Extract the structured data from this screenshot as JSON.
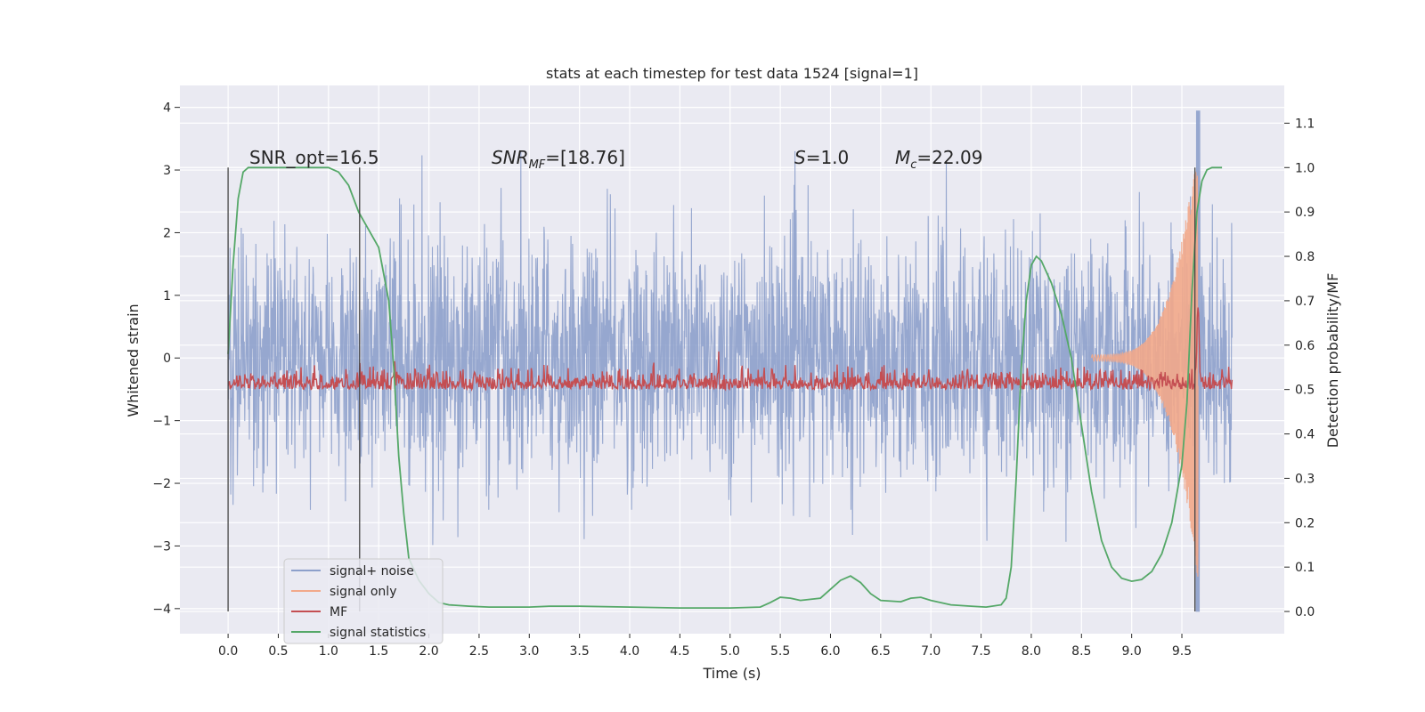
{
  "chart_data": {
    "type": "line",
    "title": "stats at each timestep for test data 1524 [signal=1]",
    "xlabel": "Time (s)",
    "ylabel": "Whitened strain",
    "y2label": "Detection probability/MF",
    "xlim": [
      -0.48,
      10.52
    ],
    "ylim": [
      -4.4,
      4.35
    ],
    "y2lim": [
      -0.05,
      1.185
    ],
    "xticks": [
      "0.0",
      "0.5",
      "1.0",
      "1.5",
      "2.0",
      "2.5",
      "3.0",
      "3.5",
      "4.0",
      "4.5",
      "5.0",
      "5.5",
      "6.0",
      "6.5",
      "7.0",
      "7.5",
      "8.0",
      "8.5",
      "9.0",
      "9.5"
    ],
    "yticks": [
      "4",
      "3",
      "2",
      "1",
      "0",
      "−1",
      "−2",
      "−3",
      "−4"
    ],
    "y2ticks": [
      "1.1",
      "1.0",
      "0.9",
      "0.8",
      "0.7",
      "0.6",
      "0.5",
      "0.4",
      "0.3",
      "0.2",
      "0.1",
      "0.0"
    ],
    "annotations": {
      "snr_opt": "SNR_opt=16.5",
      "snr_mf_sym": "SNR",
      "snr_mf_sub": "MF",
      "snr_mf_val": "=[18.76]",
      "s_sym": "S",
      "s_val": "=1.0",
      "mc_sym": "M",
      "mc_sub": "c",
      "mc_val": "=22.09"
    },
    "vlines_x": [
      0.0,
      1.31,
      9.63
    ],
    "legend": {
      "position": "lower-left",
      "entries": [
        "signal+ noise",
        "signal only",
        "MF",
        "signal statistics"
      ]
    },
    "series": [
      {
        "name": "signal+ noise",
        "axis": "left",
        "color": "#8da0cb",
        "description_envelope": {
          "typical_amplitude": 2.0,
          "peak_max": 3.95,
          "peak_min": -4.05,
          "x_range": [
            0.0,
            10.0
          ]
        }
      },
      {
        "name": "signal only",
        "axis": "left",
        "color": "#f2a98a",
        "chirp": {
          "start": 8.6,
          "end": 9.66,
          "max_amplitude": 3.5
        }
      },
      {
        "name": "MF",
        "axis": "right",
        "color": "#c44e52",
        "baseline": 0.5,
        "noise": 0.02,
        "peak_x": 9.66,
        "peak_value": 0.67
      },
      {
        "name": "signal statistics",
        "axis": "right",
        "color": "#55a868",
        "x": [
          0.0,
          0.05,
          0.1,
          0.15,
          0.2,
          0.3,
          0.5,
          0.8,
          1.0,
          1.1,
          1.2,
          1.3,
          1.4,
          1.5,
          1.6,
          1.65,
          1.7,
          1.75,
          1.8,
          1.9,
          2.0,
          2.1,
          2.2,
          2.4,
          2.6,
          2.8,
          3.0,
          3.2,
          3.5,
          4.0,
          4.5,
          5.0,
          5.3,
          5.4,
          5.5,
          5.6,
          5.7,
          5.9,
          6.0,
          6.1,
          6.2,
          6.3,
          6.4,
          6.5,
          6.7,
          6.8,
          6.9,
          7.0,
          7.2,
          7.4,
          7.55,
          7.7,
          7.75,
          7.8,
          7.85,
          7.9,
          7.95,
          8.0,
          8.05,
          8.1,
          8.2,
          8.3,
          8.4,
          8.5,
          8.6,
          8.7,
          8.8,
          8.9,
          9.0,
          9.1,
          9.2,
          9.3,
          9.4,
          9.5,
          9.55,
          9.6,
          9.65,
          9.7,
          9.75,
          9.8,
          9.9
        ],
        "values": [
          0.58,
          0.78,
          0.93,
          0.99,
          1.0,
          1.0,
          1.0,
          1.0,
          1.0,
          0.99,
          0.96,
          0.9,
          0.86,
          0.82,
          0.7,
          0.55,
          0.35,
          0.22,
          0.12,
          0.07,
          0.04,
          0.02,
          0.015,
          0.012,
          0.01,
          0.01,
          0.01,
          0.012,
          0.012,
          0.01,
          0.008,
          0.008,
          0.01,
          0.02,
          0.032,
          0.03,
          0.025,
          0.03,
          0.05,
          0.07,
          0.08,
          0.065,
          0.04,
          0.025,
          0.022,
          0.03,
          0.032,
          0.025,
          0.015,
          0.012,
          0.01,
          0.015,
          0.03,
          0.1,
          0.3,
          0.55,
          0.7,
          0.78,
          0.8,
          0.79,
          0.74,
          0.67,
          0.57,
          0.42,
          0.27,
          0.16,
          0.1,
          0.075,
          0.068,
          0.072,
          0.09,
          0.13,
          0.2,
          0.33,
          0.47,
          0.72,
          0.9,
          0.97,
          0.995,
          1.0,
          1.0
        ]
      }
    ]
  }
}
